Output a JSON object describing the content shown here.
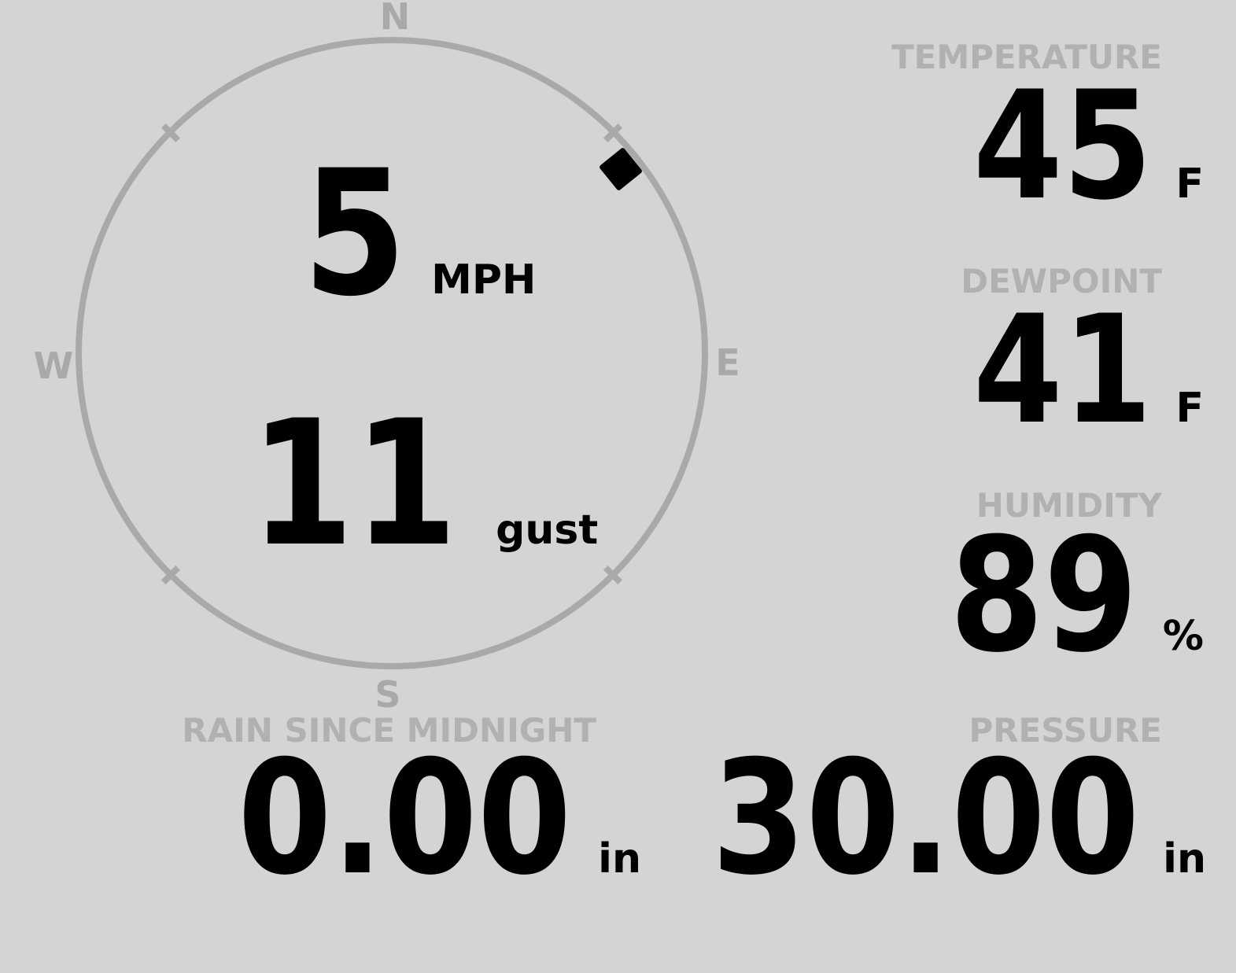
{
  "colors": {
    "background": "#d4d4d4",
    "compass_ring": "#a9a9a9",
    "label_gray": "#b1b1b1",
    "value_black": "#000000"
  },
  "compass": {
    "cardinals": {
      "north": "N",
      "east": "E",
      "south": "S",
      "west": "W"
    },
    "wind_speed": {
      "value": "5",
      "unit": "MPH"
    },
    "wind_gust": {
      "value": "11",
      "unit": "gust"
    },
    "direction_degrees": 51,
    "direction_marker": "diamond-icon"
  },
  "metrics": {
    "temperature": {
      "label": "TEMPERATURE",
      "value": "45",
      "unit": "F"
    },
    "dewpoint": {
      "label": "DEWPOINT",
      "value": "41",
      "unit": "F"
    },
    "humidity": {
      "label": "HUMIDITY",
      "value": "89",
      "unit": "%"
    },
    "rain": {
      "label": "RAIN SINCE MIDNIGHT",
      "value": "0.00",
      "unit": "in"
    },
    "pressure": {
      "label": "PRESSURE",
      "value": "30.00",
      "unit": "in"
    }
  }
}
